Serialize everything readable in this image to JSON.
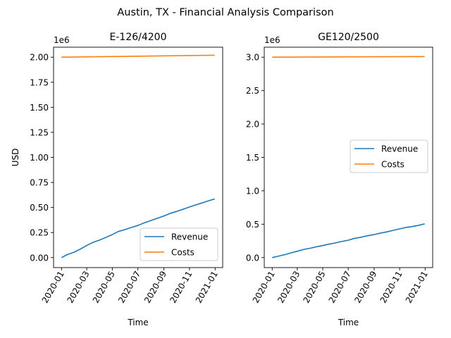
{
  "figure": {
    "suptitle": "Austin, TX - Financial Analysis Comparison",
    "colors": {
      "revenue": "#1f77b4",
      "costs": "#ff7f0e",
      "axis": "#000000"
    }
  },
  "chart_data": [
    {
      "type": "line",
      "title": "E-126/4200",
      "xlabel": "Time",
      "ylabel": "USD",
      "offset_label": "1e6",
      "x_tick_labels": [
        "2020-01",
        "2020-03",
        "2020-05",
        "2020-07",
        "2020-09",
        "2020-11",
        "2021-01"
      ],
      "y_tick_labels": [
        "0.00",
        "0.25",
        "0.50",
        "0.75",
        "1.00",
        "1.25",
        "1.50",
        "1.75",
        "2.00"
      ],
      "y_ticks": [
        0,
        0.25,
        0.5,
        0.75,
        1.0,
        1.25,
        1.5,
        1.75,
        2.0
      ],
      "xlim": [
        "2019-12-13",
        "2021-01-19"
      ],
      "ylim": [
        -0.1,
        2.1
      ],
      "legend": {
        "placement": "lower right"
      },
      "series": [
        {
          "name": "Revenue",
          "x": [
            "2020-01-01",
            "2020-01-15",
            "2020-02-01",
            "2020-02-15",
            "2020-03-01",
            "2020-03-15",
            "2020-04-01",
            "2020-04-15",
            "2020-05-01",
            "2020-05-15",
            "2020-06-01",
            "2020-06-15",
            "2020-07-01",
            "2020-07-15",
            "2020-08-01",
            "2020-08-15",
            "2020-09-01",
            "2020-09-15",
            "2020-10-01",
            "2020-10-15",
            "2020-11-01",
            "2020-11-15",
            "2020-12-01",
            "2020-12-15",
            "2020-12-31"
          ],
          "values": [
            0.0,
            0.03,
            0.055,
            0.085,
            0.12,
            0.15,
            0.175,
            0.2,
            0.23,
            0.26,
            0.28,
            0.3,
            0.32,
            0.345,
            0.37,
            0.39,
            0.415,
            0.44,
            0.46,
            0.48,
            0.505,
            0.525,
            0.545,
            0.565,
            0.585
          ]
        },
        {
          "name": "Costs",
          "x": [
            "2020-01-01",
            "2020-12-31"
          ],
          "values": [
            2.0,
            2.02
          ]
        }
      ]
    },
    {
      "type": "line",
      "title": "GE120/2500",
      "xlabel": "Time",
      "ylabel": "",
      "offset_label": "1e6",
      "x_tick_labels": [
        "2020-01",
        "2020-03",
        "2020-05",
        "2020-07",
        "2020-09",
        "2020-11",
        "2021-01"
      ],
      "y_tick_labels": [
        "0.0",
        "0.5",
        "1.0",
        "1.5",
        "2.0",
        "2.5",
        "3.0"
      ],
      "y_ticks": [
        0,
        0.5,
        1.0,
        1.5,
        2.0,
        2.5,
        3.0
      ],
      "xlim": [
        "2019-12-13",
        "2021-01-19"
      ],
      "ylim": [
        -0.15,
        3.15
      ],
      "legend": {
        "placement": "center right"
      },
      "series": [
        {
          "name": "Revenue",
          "x": [
            "2020-01-01",
            "2020-01-15",
            "2020-02-01",
            "2020-02-15",
            "2020-03-01",
            "2020-03-15",
            "2020-04-01",
            "2020-04-15",
            "2020-05-01",
            "2020-05-15",
            "2020-06-01",
            "2020-06-15",
            "2020-07-01",
            "2020-07-15",
            "2020-08-01",
            "2020-08-15",
            "2020-09-01",
            "2020-09-15",
            "2020-10-01",
            "2020-10-15",
            "2020-11-01",
            "2020-11-15",
            "2020-12-01",
            "2020-12-15",
            "2020-12-31"
          ],
          "values": [
            0.0,
            0.02,
            0.045,
            0.07,
            0.095,
            0.12,
            0.14,
            0.16,
            0.18,
            0.2,
            0.22,
            0.24,
            0.26,
            0.285,
            0.305,
            0.325,
            0.345,
            0.365,
            0.385,
            0.405,
            0.43,
            0.45,
            0.465,
            0.48,
            0.505
          ]
        },
        {
          "name": "Costs",
          "x": [
            "2020-01-01",
            "2020-12-31"
          ],
          "values": [
            3.0,
            3.01
          ]
        }
      ]
    }
  ]
}
